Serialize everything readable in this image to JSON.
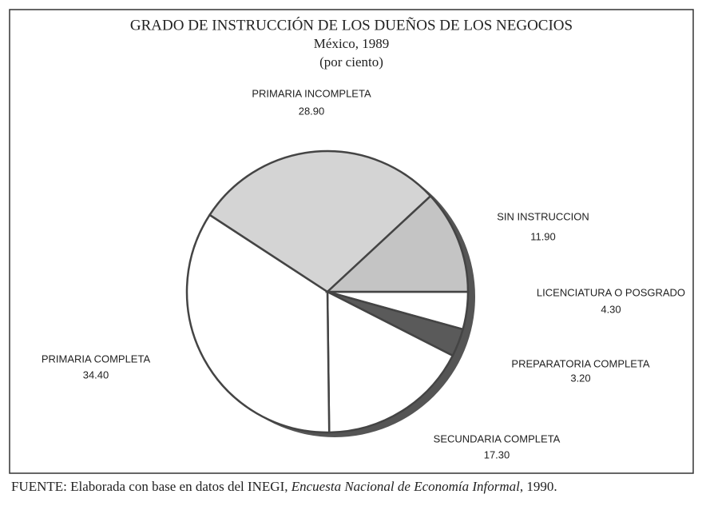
{
  "chart_data": {
    "type": "pie",
    "title": "GRADO DE INSTRUCCIÓN DE LOS DUEÑOS DE LOS NEGOCIOS",
    "subtitle": "México, 1989",
    "units": "(por ciento)",
    "categories": [
      "LICENCIATURA O POSGRADO",
      "PREPARATORIA COMPLETA",
      "SECUNDARIA COMPLETA",
      "PRIMARIA COMPLETA",
      "PRIMARIA INCOMPLETA",
      "SIN INSTRUCCION"
    ],
    "values": [
      4.3,
      3.2,
      17.3,
      34.4,
      28.9,
      11.9
    ],
    "value_labels": [
      "4.30",
      "3.20",
      "17.30",
      "34.40",
      "28.90",
      "11.90"
    ],
    "colors": [
      "#ffffff",
      "#5a5a5a",
      "#ffffff",
      "#ffffff",
      "#d4d4d4",
      "#c4c4c4"
    ]
  },
  "footer": {
    "prefix": "FUENTE: Elaborada con base en datos del INEGI,",
    "title": "Encuesta Nacional de Economía Informal",
    "suffix": ", 1990."
  }
}
